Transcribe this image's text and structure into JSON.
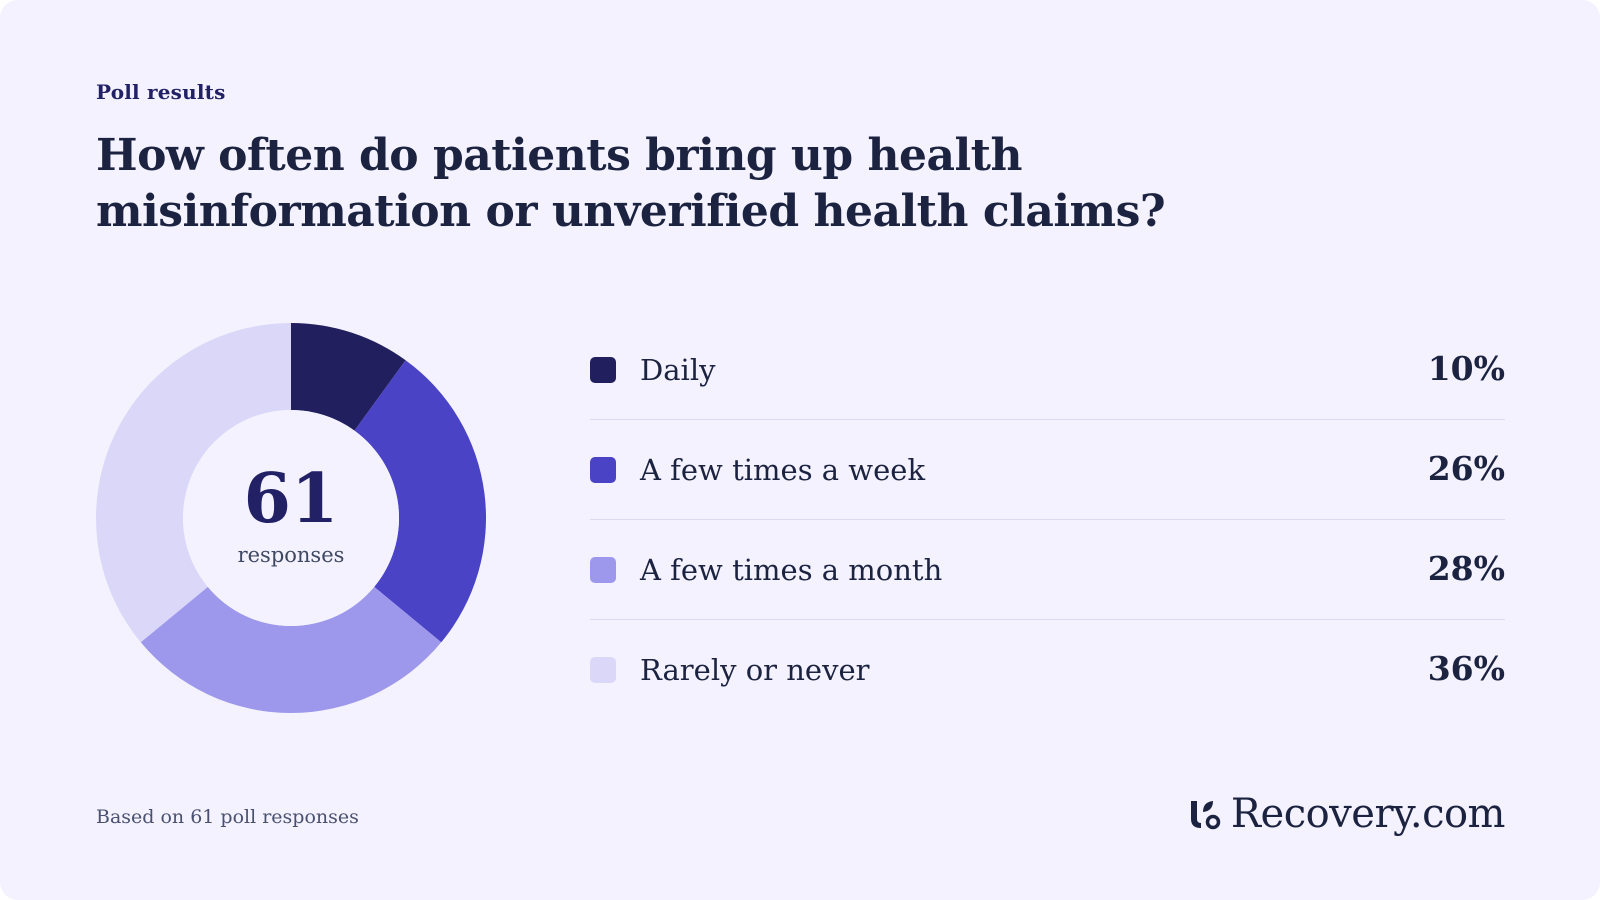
{
  "eyebrow": "Poll results",
  "title": "How often do patients bring up health misinformation or unverified health claims?",
  "center": {
    "count": "61",
    "label": "responses"
  },
  "footnote": "Based on 61 poll responses",
  "logo": {
    "icon": "recovery-logo-icon",
    "brand": "Recovery",
    "tld": ".com"
  },
  "colors": {
    "background": "#f3f2fe",
    "text": "#1c2340"
  },
  "chart_data": {
    "type": "pie",
    "style": "donut",
    "categories": [
      "Daily",
      "A few times a week",
      "A few times a month",
      "Rarely or never"
    ],
    "values": [
      10,
      26,
      28,
      36
    ],
    "value_labels": [
      "10%",
      "26%",
      "28%",
      "36%"
    ],
    "colors": [
      "#221f5e",
      "#4a43c6",
      "#9d98ec",
      "#dad7f9"
    ],
    "total_responses": 61,
    "legend_position": "right"
  }
}
